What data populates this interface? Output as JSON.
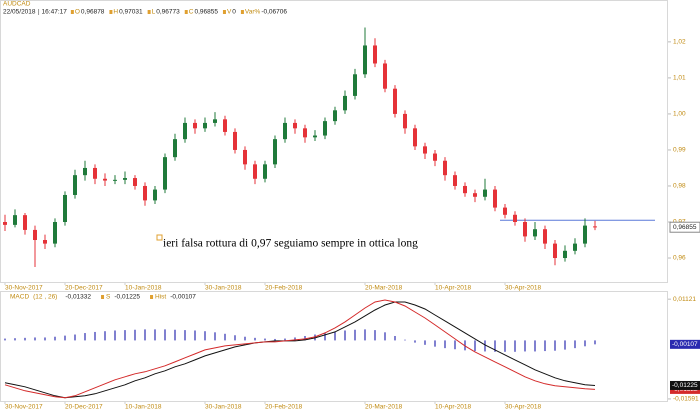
{
  "chart_data": [
    {
      "type": "candlestick",
      "title": "AUDCAD",
      "date": "22/05/2018",
      "time": "16:47:17",
      "fields": [
        {
          "key": "O",
          "value": "0,96878"
        },
        {
          "key": "H",
          "value": "0,97031"
        },
        {
          "key": "L",
          "value": "0,96773"
        },
        {
          "key": "C",
          "value": "0,96855"
        },
        {
          "key": "V",
          "value": "0"
        },
        {
          "key": "Var%",
          "value": "-0,06706"
        }
      ],
      "annotation": "ieri falsa rottura di 0,97 seguiamo sempre in ottica long",
      "up_color": "#1f7a3a",
      "down_color": "#e53238",
      "level": 0.9705,
      "level_color": "#5a78d8",
      "last_label": "0,96855",
      "open": [
        0.97,
        0.9692,
        0.9719,
        0.9678,
        0.965,
        0.964,
        0.97,
        0.9775,
        0.983,
        0.985,
        0.982,
        0.9815,
        0.9817,
        0.9822,
        0.98,
        0.976,
        0.979,
        0.988,
        0.993,
        0.9975,
        0.996,
        0.9975,
        0.9985,
        0.995,
        0.99,
        0.986,
        0.982,
        0.986,
        0.993,
        0.9975,
        0.996,
        0.9935,
        0.994,
        0.998,
        1.001,
        1.005,
        1.011,
        1.019,
        1.014,
        1.007,
        1.0,
        0.996,
        0.991,
        0.989,
        0.987,
        0.983,
        0.98,
        0.978,
        0.977,
        0.979,
        0.974,
        0.972,
        0.97,
        0.966,
        0.968,
        0.964,
        0.96,
        0.962,
        0.964,
        0.96878
      ],
      "high": [
        0.972,
        0.9735,
        0.9725,
        0.969,
        0.9665,
        0.971,
        0.9785,
        0.9845,
        0.987,
        0.986,
        0.9835,
        0.983,
        0.984,
        0.983,
        0.981,
        0.98,
        0.989,
        0.9945,
        0.999,
        0.9985,
        0.999,
        1.0005,
        0.9995,
        0.996,
        0.991,
        0.987,
        0.987,
        0.994,
        0.999,
        0.9985,
        0.997,
        0.9955,
        0.999,
        1.002,
        1.0065,
        1.0125,
        1.024,
        1.021,
        1.015,
        1.008,
        1.001,
        0.997,
        0.992,
        0.99,
        0.988,
        0.984,
        0.981,
        0.979,
        0.982,
        0.98,
        0.975,
        0.973,
        0.971,
        0.97,
        0.969,
        0.965,
        0.9635,
        0.9655,
        0.971,
        0.97031
      ],
      "low": [
        0.9675,
        0.9685,
        0.9665,
        0.9575,
        0.9625,
        0.963,
        0.969,
        0.9765,
        0.9815,
        0.9805,
        0.98,
        0.9805,
        0.9805,
        0.979,
        0.9745,
        0.975,
        0.978,
        0.987,
        0.992,
        0.9945,
        0.995,
        0.9965,
        0.994,
        0.989,
        0.9845,
        0.9805,
        0.981,
        0.985,
        0.992,
        0.9945,
        0.992,
        0.9925,
        0.993,
        0.997,
        1.0,
        1.004,
        1.01,
        1.013,
        1.006,
        0.999,
        0.9945,
        0.99,
        0.9875,
        0.9855,
        0.9815,
        0.979,
        0.977,
        0.9755,
        0.976,
        0.973,
        0.971,
        0.969,
        0.9645,
        0.965,
        0.9625,
        0.958,
        0.959,
        0.961,
        0.963,
        0.96773
      ],
      "close": [
        0.9692,
        0.9719,
        0.9678,
        0.965,
        0.964,
        0.97,
        0.9775,
        0.983,
        0.985,
        0.982,
        0.9815,
        0.9817,
        0.9822,
        0.98,
        0.976,
        0.979,
        0.988,
        0.993,
        0.9975,
        0.996,
        0.9975,
        0.9985,
        0.995,
        0.99,
        0.986,
        0.982,
        0.986,
        0.993,
        0.9975,
        0.996,
        0.9935,
        0.994,
        0.998,
        1.001,
        1.005,
        1.011,
        1.019,
        1.014,
        1.007,
        1.0,
        0.996,
        0.991,
        0.989,
        0.987,
        0.983,
        0.98,
        0.978,
        0.977,
        0.979,
        0.974,
        0.972,
        0.97,
        0.966,
        0.968,
        0.964,
        0.96,
        0.962,
        0.964,
        0.969,
        0.96855
      ],
      "xlim": [
        -0.5,
        66.3
      ],
      "ylim": [
        0.9539,
        1.0294
      ],
      "yticks": [
        {
          "value": 0.96,
          "label": "0,96"
        },
        {
          "value": 0.97,
          "label": "0,97"
        },
        {
          "value": 0.98,
          "label": "0,98"
        },
        {
          "value": 0.99,
          "label": "0,99"
        },
        {
          "value": 1.0,
          "label": "1,00"
        },
        {
          "value": 1.01,
          "label": "1,01"
        },
        {
          "value": 1.02,
          "label": "1,02"
        }
      ],
      "xticks": [
        {
          "value": 0,
          "label": "30-Nov-2017"
        },
        {
          "value": 6,
          "label": "20-Dec-2017"
        },
        {
          "value": 12,
          "label": "10-Jan-2018"
        },
        {
          "value": 20,
          "label": "30-Jan-2018"
        },
        {
          "value": 26,
          "label": "20-Feb-2018"
        },
        {
          "value": 36,
          "label": "20-Mar-2018"
        },
        {
          "value": 43,
          "label": "10-Apr-2018"
        },
        {
          "value": 50,
          "label": "30-Apr-2018"
        }
      ]
    },
    {
      "type": "macd",
      "params": "(12 , 26)",
      "series": [
        {
          "name": "MACD",
          "color": "#d42a2a",
          "last_label": "-0,01332",
          "values": [
            -0.01207,
            -0.01288,
            -0.01369,
            -0.01424,
            -0.01478,
            -0.01532,
            -0.01559,
            -0.01505,
            -0.01396,
            -0.01288,
            -0.01179,
            -0.01071,
            -0.0099,
            -0.00908,
            -0.00854,
            -0.00773,
            -0.00691,
            -0.00583,
            -0.00474,
            -0.00366,
            -0.00257,
            -0.00203,
            -0.00149,
            -0.00122,
            -0.00095,
            -0.00068,
            -0.0004,
            -0.0004,
            -0.00013,
            0.00014,
            0.00041,
            0.00095,
            0.00204,
            0.00339,
            0.00502,
            0.00692,
            0.00882,
            0.01044,
            0.01099,
            0.01044,
            0.00936,
            0.00773,
            0.0061,
            0.00421,
            0.00231,
            0.00041,
            -0.00149,
            -0.00312,
            -0.00447,
            -0.00583,
            -0.00718,
            -0.00854,
            -0.0099,
            -0.01098,
            -0.01179,
            -0.01234,
            -0.01261,
            -0.01288,
            -0.01315,
            -0.01332
          ]
        },
        {
          "name": "S",
          "color": "#111111",
          "last_label": "-0,01225",
          "values": [
            -0.01152,
            -0.01207,
            -0.01261,
            -0.01342,
            -0.01424,
            -0.01505,
            -0.01559,
            -0.01532,
            -0.01505,
            -0.01451,
            -0.01369,
            -0.01288,
            -0.01207,
            -0.01098,
            -0.01017,
            -0.00908,
            -0.00827,
            -0.00718,
            -0.00637,
            -0.00529,
            -0.0042,
            -0.00339,
            -0.00257,
            -0.00176,
            -0.00122,
            -0.00068,
            -0.0004,
            -0.00013,
            -0.00013,
            -0.00013,
            0.00014,
            0.00068,
            0.00149,
            0.00231,
            0.00366,
            0.00502,
            0.00665,
            0.00827,
            0.00963,
            0.01044,
            0.01044,
            0.00963,
            0.00855,
            0.00692,
            0.00529,
            0.00366,
            0.00204,
            0.00041,
            -0.00122,
            -0.00257,
            -0.00393,
            -0.00529,
            -0.00664,
            -0.008,
            -0.00908,
            -0.01017,
            -0.01098,
            -0.01152,
            -0.01207,
            -0.01225
          ]
        },
        {
          "name": "Hist",
          "color": "#2b2bb0",
          "last_label": "-0,00107",
          "values": [
            0.0005,
            0.0006,
            0.0007,
            0.0008,
            0.0008,
            0.001,
            0.0013,
            0.0016,
            0.002,
            0.0023,
            0.0025,
            0.0027,
            0.0028,
            0.0029,
            0.003,
            0.003,
            0.003,
            0.0029,
            0.0028,
            0.0027,
            0.0025,
            0.0022,
            0.0018,
            0.0014,
            0.001,
            0.0007,
            0.0005,
            0.0004,
            0.0005,
            0.0008,
            0.0012,
            0.0016,
            0.002,
            0.0024,
            0.0027,
            0.0029,
            0.003,
            0.0028,
            0.0022,
            0.0012,
            0.0002,
            -0.0006,
            -0.0012,
            -0.0017,
            -0.0021,
            -0.0024,
            -0.0027,
            -0.0029,
            -0.003,
            -0.0031,
            -0.0031,
            -0.0031,
            -0.003,
            -0.003,
            -0.0029,
            -0.0028,
            -0.0025,
            -0.0021,
            -0.0016,
            -0.00107
          ]
        }
      ],
      "xlim": [
        -0.5,
        66.3
      ],
      "ylim": [
        -0.0162,
        0.0118
      ],
      "yticks": [
        {
          "value": 0.01121,
          "label": "0,01121"
        },
        {
          "value": -0.01591,
          "label": "-0,01591"
        }
      ],
      "xticks": [
        {
          "value": 0,
          "label": "30-Nov-2017"
        },
        {
          "value": 6,
          "label": "20-Dec-2017"
        },
        {
          "value": 12,
          "label": "10-Jan-2018"
        },
        {
          "value": 20,
          "label": "30-Jan-2018"
        },
        {
          "value": 26,
          "label": "20-Feb-2018"
        },
        {
          "value": 36,
          "label": "20-Mar-2018"
        },
        {
          "value": 43,
          "label": "10-Apr-2018"
        },
        {
          "value": 50,
          "label": "30-Apr-2018"
        }
      ]
    }
  ]
}
